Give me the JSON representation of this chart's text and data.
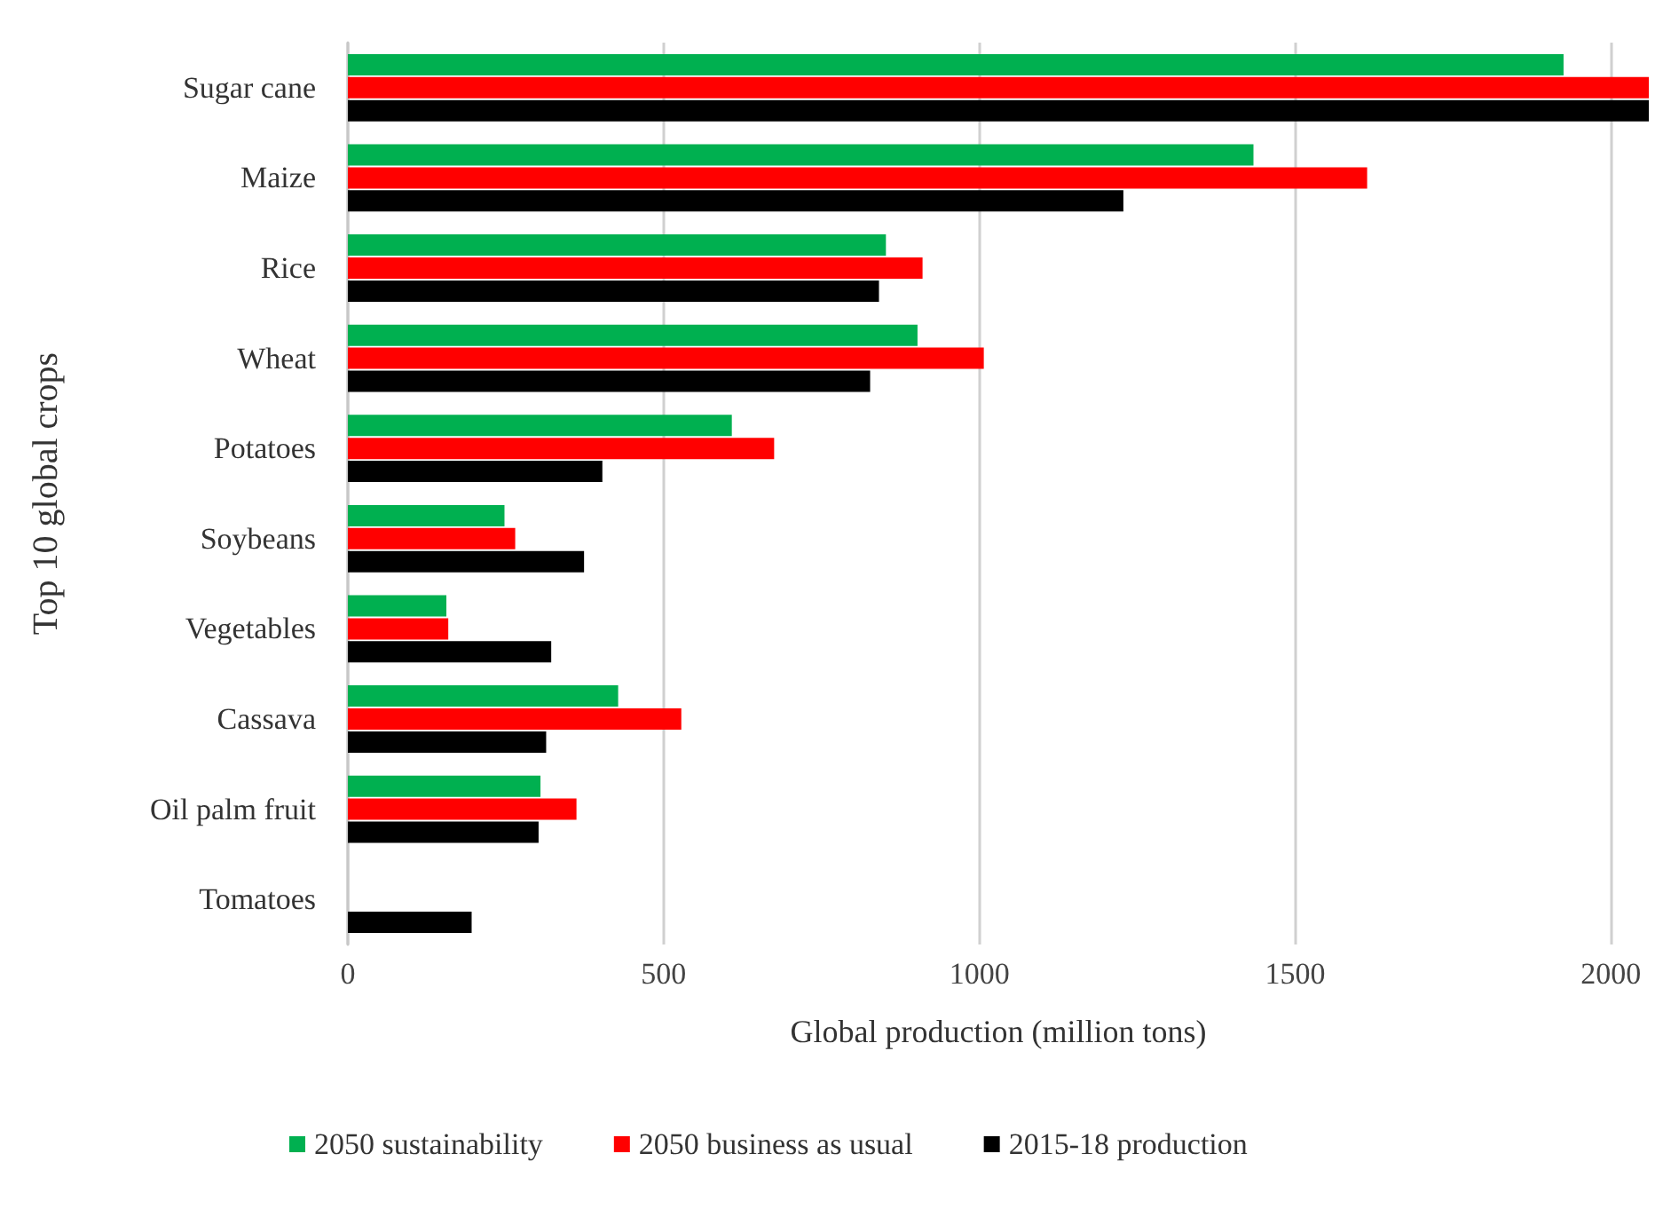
{
  "chart_data": {
    "type": "bar",
    "orientation": "horizontal",
    "xlabel": "Global production (million tons)",
    "ylabel": "Top 10 global crops",
    "categories": [
      "Sugar cane",
      "Maize",
      "Rice",
      "Wheat",
      "Potatoes",
      "Soybeans",
      "Vegetables",
      "Cassava",
      "Oil palm fruit",
      "Tomatoes"
    ],
    "series": [
      {
        "name": "2050 sustainability",
        "color": "#00b050",
        "values": [
          1925,
          1434,
          852,
          902,
          608,
          248,
          156,
          428,
          305,
          null
        ]
      },
      {
        "name": "2050 business as usual",
        "color": "#ff0000",
        "values": [
          2060,
          1614,
          910,
          1007,
          675,
          265,
          159,
          528,
          362,
          null
        ]
      },
      {
        "name": "2015-18 production",
        "color": "#000000",
        "values": [
          2060,
          1228,
          841,
          827,
          403,
          374,
          322,
          314,
          302,
          196
        ]
      }
    ],
    "xlim": [
      0,
      2060
    ],
    "xticks": [
      0,
      500,
      1000,
      1500,
      2000
    ],
    "grid": "x",
    "legend": "bottom"
  }
}
